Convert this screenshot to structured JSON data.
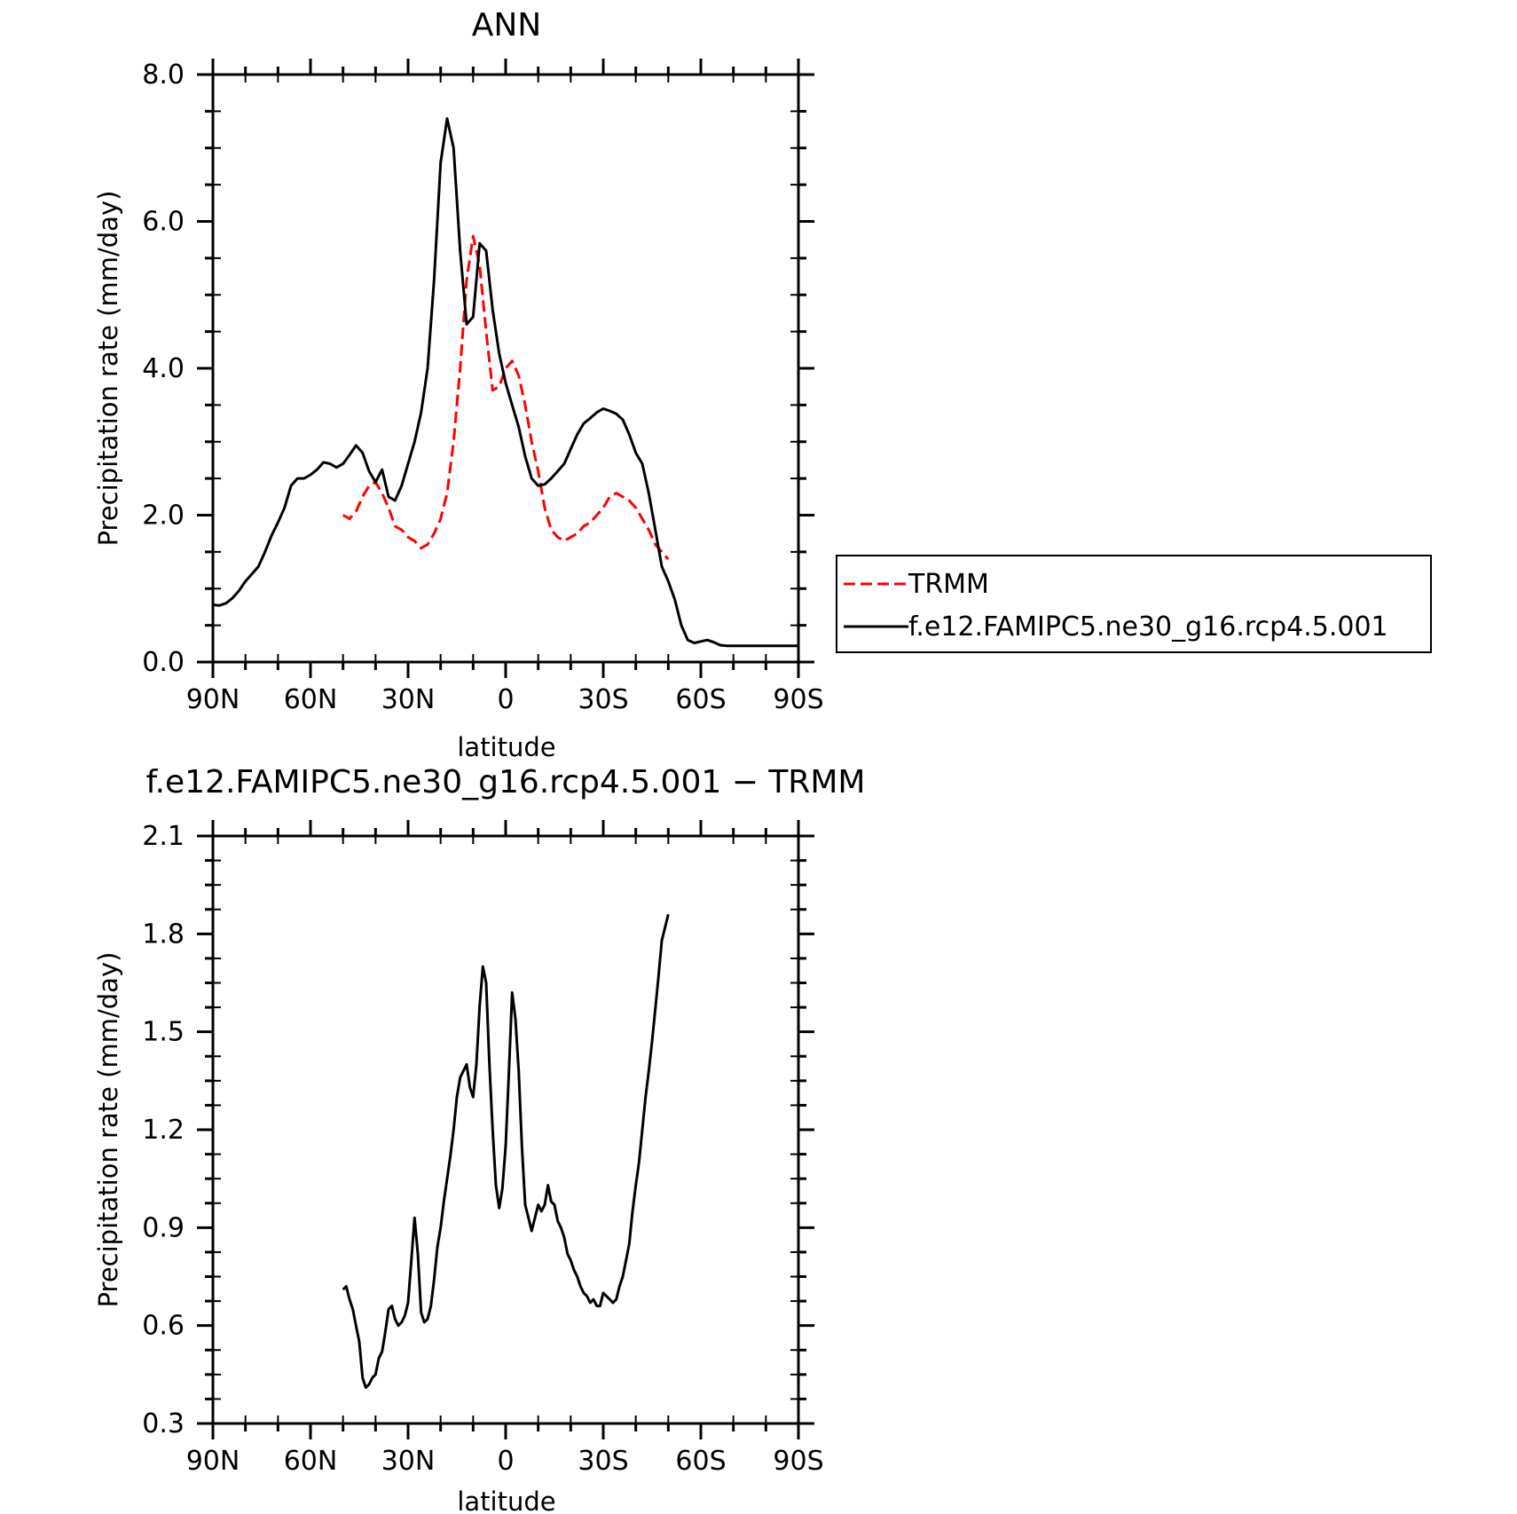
{
  "chart_data": [
    {
      "type": "line",
      "title": "ANN",
      "xlabel": "latitude",
      "ylabel": "Precipitation rate (mm/day)",
      "xlim": [
        90,
        -90
      ],
      "ylim": [
        0.0,
        8.0
      ],
      "x_ticks": [
        {
          "value": 90,
          "label": "90N"
        },
        {
          "value": 60,
          "label": "60N"
        },
        {
          "value": 30,
          "label": "30N"
        },
        {
          "value": 0,
          "label": "0"
        },
        {
          "value": -30,
          "label": "30S"
        },
        {
          "value": -60,
          "label": "60S"
        },
        {
          "value": -90,
          "label": "90S"
        }
      ],
      "y_ticks": [
        {
          "value": 0.0,
          "label": "0.0"
        },
        {
          "value": 2.0,
          "label": "2.0"
        },
        {
          "value": 4.0,
          "label": "4.0"
        },
        {
          "value": 6.0,
          "label": "6.0"
        },
        {
          "value": 8.0,
          "label": "8.0"
        }
      ],
      "legend": {
        "placement": "right"
      },
      "series": [
        {
          "name": "TRMM",
          "color": "#ff0000",
          "dash": true,
          "x": [
            50,
            48,
            46,
            44,
            42,
            40,
            38,
            36,
            34,
            32,
            30,
            28,
            26,
            24,
            22,
            20,
            18,
            16,
            14,
            12,
            10,
            8,
            6,
            4,
            2,
            0,
            -2,
            -4,
            -6,
            -8,
            -10,
            -12,
            -14,
            -16,
            -18,
            -20,
            -22,
            -24,
            -26,
            -28,
            -30,
            -32,
            -34,
            -36,
            -38,
            -40,
            -42,
            -44,
            -46,
            -48,
            -50
          ],
          "y": [
            2.0,
            1.95,
            2.05,
            2.25,
            2.4,
            2.45,
            2.3,
            2.1,
            1.85,
            1.8,
            1.7,
            1.65,
            1.55,
            1.6,
            1.75,
            1.95,
            2.3,
            3.0,
            4.0,
            5.2,
            5.8,
            5.4,
            4.5,
            3.7,
            3.75,
            4.0,
            4.1,
            3.9,
            3.5,
            3.0,
            2.6,
            2.1,
            1.8,
            1.7,
            1.65,
            1.7,
            1.75,
            1.85,
            1.9,
            2.0,
            2.1,
            2.25,
            2.3,
            2.25,
            2.2,
            2.1,
            1.95,
            1.8,
            1.6,
            1.5,
            1.4
          ]
        },
        {
          "name": "f.e12.FAMIPC5.ne30_g16.rcp4.5.001",
          "color": "#000000",
          "dash": false,
          "x": [
            90,
            88,
            86,
            84,
            82,
            80,
            78,
            76,
            74,
            72,
            70,
            68,
            66,
            64,
            62,
            60,
            58,
            56,
            54,
            52,
            50,
            48,
            46,
            44,
            42,
            40,
            38,
            36,
            34,
            32,
            30,
            28,
            26,
            24,
            22,
            20,
            18,
            16,
            14,
            12,
            10,
            8,
            6,
            4,
            2,
            0,
            -2,
            -4,
            -6,
            -8,
            -10,
            -12,
            -14,
            -16,
            -18,
            -20,
            -22,
            -24,
            -26,
            -28,
            -30,
            -32,
            -34,
            -36,
            -38,
            -40,
            -42,
            -44,
            -46,
            -48,
            -50,
            -52,
            -54,
            -56,
            -58,
            -60,
            -62,
            -64,
            -66,
            -68,
            -70,
            -72,
            -74,
            -76,
            -78,
            -80,
            -82,
            -84,
            -86,
            -88,
            -90
          ],
          "y": [
            0.78,
            0.77,
            0.8,
            0.87,
            0.97,
            1.1,
            1.2,
            1.3,
            1.5,
            1.72,
            1.9,
            2.1,
            2.4,
            2.5,
            2.5,
            2.55,
            2.62,
            2.72,
            2.7,
            2.65,
            2.7,
            2.82,
            2.95,
            2.85,
            2.6,
            2.45,
            2.62,
            2.25,
            2.2,
            2.4,
            2.7,
            3.0,
            3.4,
            4.0,
            5.2,
            6.8,
            7.4,
            7.0,
            5.6,
            4.6,
            4.7,
            5.7,
            5.6,
            4.8,
            4.2,
            3.8,
            3.5,
            3.2,
            2.8,
            2.5,
            2.4,
            2.42,
            2.5,
            2.6,
            2.7,
            2.9,
            3.1,
            3.25,
            3.32,
            3.4,
            3.45,
            3.42,
            3.38,
            3.3,
            3.1,
            2.85,
            2.7,
            2.3,
            1.8,
            1.3,
            1.1,
            0.85,
            0.5,
            0.3,
            0.26,
            0.28,
            0.3,
            0.27,
            0.23,
            0.22,
            0.22,
            0.22,
            0.22,
            0.22,
            0.22,
            0.22,
            0.22,
            0.22,
            0.22,
            0.22,
            0.22
          ]
        }
      ]
    },
    {
      "type": "line",
      "title": "f.e12.FAMIPC5.ne30_g16.rcp4.5.001 − TRMM",
      "xlabel": "latitude",
      "ylabel": "Precipitation rate (mm/day)",
      "xlim": [
        90,
        -90
      ],
      "ylim": [
        0.3,
        2.1
      ],
      "x_ticks": [
        {
          "value": 90,
          "label": "90N"
        },
        {
          "value": 60,
          "label": "60N"
        },
        {
          "value": 30,
          "label": "30N"
        },
        {
          "value": 0,
          "label": "0"
        },
        {
          "value": -30,
          "label": "30S"
        },
        {
          "value": -60,
          "label": "60S"
        },
        {
          "value": -90,
          "label": "90S"
        }
      ],
      "y_ticks": [
        {
          "value": 0.3,
          "label": "0.3"
        },
        {
          "value": 0.6,
          "label": "0.6"
        },
        {
          "value": 0.9,
          "label": "0.9"
        },
        {
          "value": 1.2,
          "label": "1.2"
        },
        {
          "value": 1.5,
          "label": "1.5"
        },
        {
          "value": 1.8,
          "label": "1.8"
        },
        {
          "value": 2.1,
          "label": "2.1"
        }
      ],
      "series": [
        {
          "color": "#000000",
          "dash": false,
          "x": [
            50,
            49,
            48,
            47,
            46,
            45,
            44,
            43,
            42,
            41,
            40,
            39,
            38,
            37,
            36,
            35,
            34,
            33,
            32,
            31,
            30,
            29,
            28,
            27,
            26,
            25,
            24,
            23,
            22,
            21,
            20,
            19,
            18,
            17,
            16,
            15,
            14,
            13,
            12,
            11,
            10,
            9,
            8,
            7,
            6,
            5,
            4,
            3,
            2,
            1,
            0,
            -1,
            -2,
            -3,
            -4,
            -5,
            -6,
            -7,
            -8,
            -9,
            -10,
            -11,
            -12,
            -13,
            -14,
            -15,
            -16,
            -17,
            -18,
            -19,
            -20,
            -21,
            -22,
            -23,
            -24,
            -25,
            -26,
            -27,
            -28,
            -29,
            -30,
            -31,
            -32,
            -33,
            -34,
            -35,
            -36,
            -37,
            -38,
            -39,
            -40,
            -41,
            -42,
            -43,
            -44,
            -45,
            -46,
            -47,
            -48,
            -49,
            -50
          ],
          "y": [
            0.71,
            0.72,
            0.68,
            0.65,
            0.6,
            0.55,
            0.44,
            0.41,
            0.42,
            0.44,
            0.45,
            0.5,
            0.52,
            0.58,
            0.65,
            0.66,
            0.62,
            0.6,
            0.61,
            0.63,
            0.67,
            0.8,
            0.93,
            0.82,
            0.64,
            0.61,
            0.62,
            0.66,
            0.74,
            0.84,
            0.9,
            0.98,
            1.05,
            1.12,
            1.2,
            1.3,
            1.36,
            1.38,
            1.4,
            1.33,
            1.3,
            1.4,
            1.58,
            1.7,
            1.65,
            1.4,
            1.2,
            1.03,
            0.96,
            1.02,
            1.15,
            1.38,
            1.62,
            1.54,
            1.38,
            1.15,
            0.97,
            0.93,
            0.89,
            0.93,
            0.97,
            0.95,
            0.97,
            1.03,
            0.98,
            0.97,
            0.92,
            0.9,
            0.87,
            0.82,
            0.8,
            0.77,
            0.75,
            0.72,
            0.7,
            0.69,
            0.67,
            0.68,
            0.66,
            0.66,
            0.7,
            0.69,
            0.68,
            0.67,
            0.68,
            0.72,
            0.75,
            0.8,
            0.85,
            0.95,
            1.03,
            1.1,
            1.2,
            1.3,
            1.38,
            1.47,
            1.57,
            1.67,
            1.78,
            1.82,
            1.86
          ]
        }
      ]
    }
  ]
}
